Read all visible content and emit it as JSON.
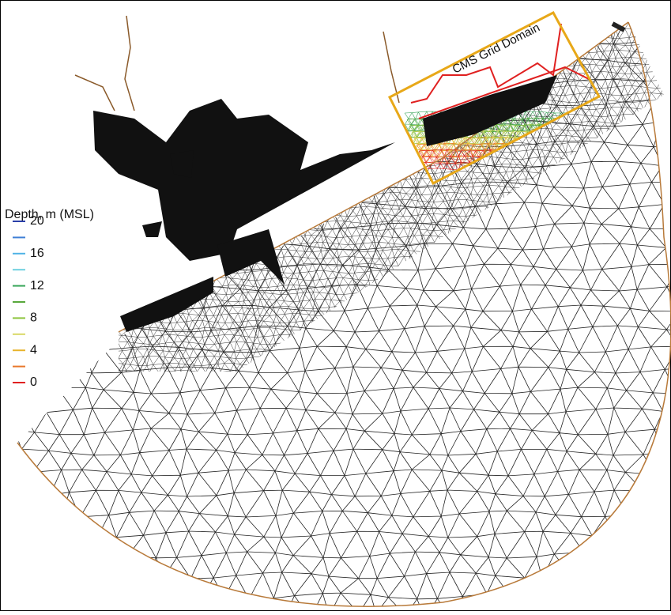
{
  "legend": {
    "title": "Depth, m (MSL)",
    "labels": [
      20,
      16,
      12,
      8,
      4,
      0
    ],
    "colors": [
      "#2a3fa8",
      "#3f7fd6",
      "#4fb3e6",
      "#6fd0e0",
      "#3aa65a",
      "#59a83c",
      "#8cc43c",
      "#d9d866",
      "#e8b42c",
      "#e8782c",
      "#e02020"
    ]
  },
  "annotation": "CMS Grid Domain"
}
